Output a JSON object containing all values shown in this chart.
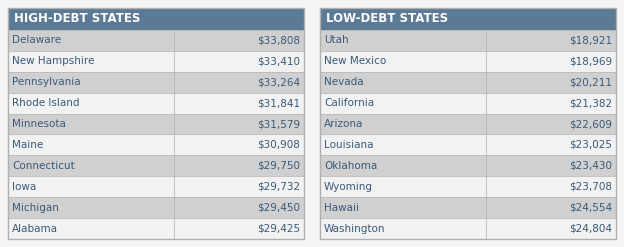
{
  "high_debt_header": "HIGH-DEBT STATES",
  "low_debt_header": "LOW-DEBT STATES",
  "high_debt_states": [
    "Delaware",
    "New Hampshire",
    "Pennsylvania",
    "Rhode Island",
    "Minnesota",
    "Maine",
    "Connecticut",
    "Iowa",
    "Michigan",
    "Alabama"
  ],
  "high_debt_values": [
    "$33,808",
    "$33,410",
    "$33,264",
    "$31,841",
    "$31,579",
    "$30,908",
    "$29,750",
    "$29,732",
    "$29,450",
    "$29,425"
  ],
  "low_debt_states": [
    "Utah",
    "New Mexico",
    "Nevada",
    "California",
    "Arizona",
    "Louisiana",
    "Oklahoma",
    "Wyoming",
    "Hawaii",
    "Washington"
  ],
  "low_debt_values": [
    "$18,921",
    "$18,969",
    "$20,211",
    "$21,382",
    "$22,609",
    "$23,025",
    "$23,430",
    "$23,708",
    "$24,554",
    "$24,804"
  ],
  "header_bg_color": "#5a7a96",
  "header_text_color": "#ffffff",
  "row_even_color": "#d0d0d0",
  "row_odd_color": "#f2f2f2",
  "border_color": "#b0b0b0",
  "text_color": "#3a5a78",
  "value_color": "#3a5a78",
  "fig_bg_color": "#f5f5f5",
  "font_size": 7.5,
  "header_font_size": 8.5,
  "col_split": 0.56
}
